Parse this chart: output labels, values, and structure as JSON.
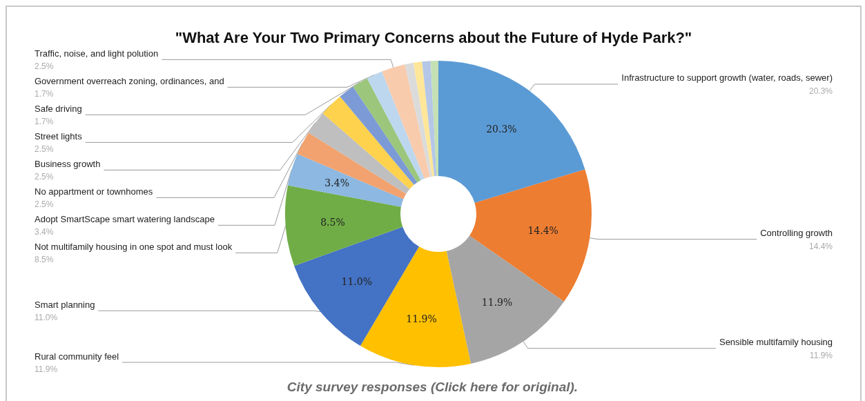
{
  "chart_data": {
    "type": "donut",
    "title": "\"What Are Your Two Primary Concerns about the Future of Hyde Park?\"",
    "categories": [
      "Infrastructure to support growth (water, roads, sewer)",
      "Controlling growth",
      "Sensible multifamily housing",
      "Rural community feel",
      "Smart planning",
      "Not multifamily housing in one spot and must look",
      "Adopt SmartScape smart watering landscape",
      "No appartment or townhomes",
      "Business growth",
      "Street lights",
      null,
      "Safe driving",
      "Government overreach zoning, ordinances, and",
      "Traffic, noise, and light polution",
      null,
      null,
      null,
      null
    ],
    "values": [
      20.3,
      14.4,
      11.9,
      11.9,
      11.0,
      8.5,
      3.4,
      2.5,
      2.5,
      2.5,
      1.7,
      1.7,
      1.7,
      2.5,
      0.9,
      0.9,
      0.9,
      0.8
    ],
    "value_labels": [
      "20.3%",
      "14.4%",
      "11.9%",
      "11.9%",
      "11.0%",
      "8.5%",
      "3.4%",
      "2.5%",
      "2.5%",
      "2.5%",
      null,
      "1.7%",
      "1.7%",
      "2.5%",
      null,
      null,
      null,
      null
    ],
    "colors": [
      "#5b9bd5",
      "#ed7d31",
      "#a5a5a5",
      "#ffc000",
      "#4472c4",
      "#70ad47",
      "#8cb8e2",
      "#f1a26f",
      "#bfbfbf",
      "#ffd24d",
      "#7c9bd6",
      "#9bc67c",
      "#bdd7ee",
      "#f8cbad",
      "#dbdbdb",
      "#ffe699",
      "#b4c7e7",
      "#c5e0b4"
    ],
    "annotations": [
      "City survey responses (Click here for original)."
    ]
  }
}
